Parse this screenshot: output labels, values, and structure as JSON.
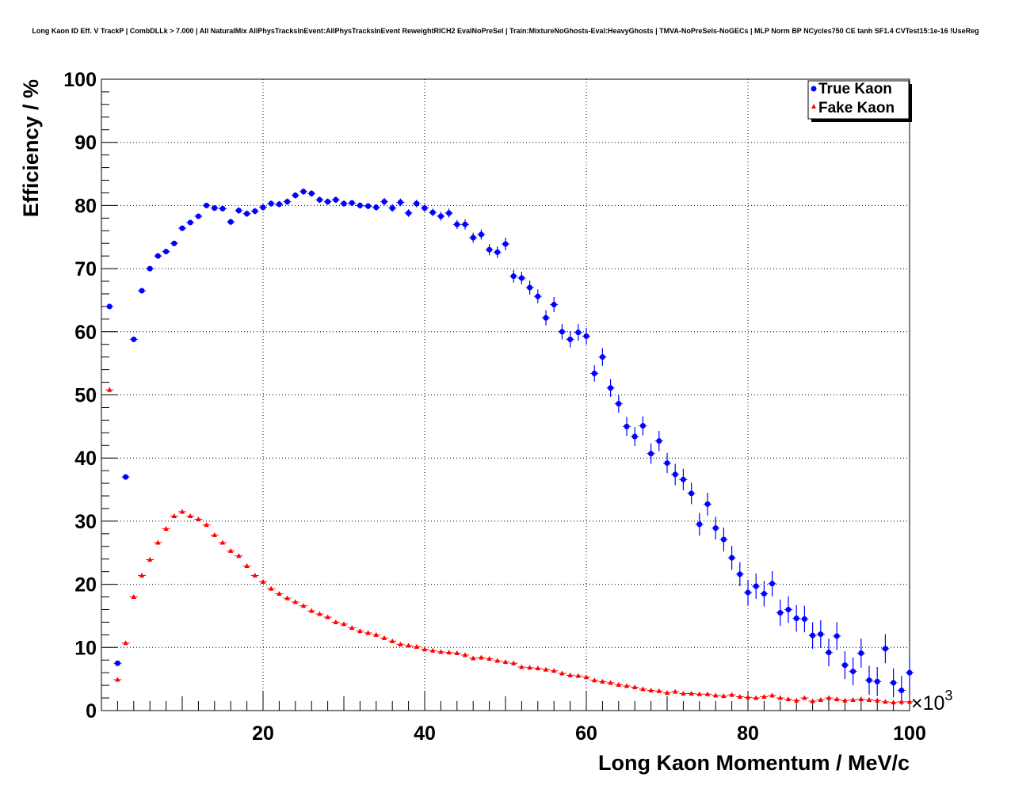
{
  "chart_data": {
    "type": "scatter",
    "title": "Long Kaon ID Eff. V TrackP | CombDLLk > 7.000 | All NaturalMix AllPhysTracksInEvent:AllPhysTracksInEvent ReweightRICH2 EvalNoPreSel | Train:MixtureNoGhosts-Eval:HeavyGhosts | TMVA-NoPreSels-NoGECs | MLP Norm BP NCycles750 CE tanh SF1.4 CVTest15:1e-16 !UseReg",
    "xlabel": "Long Kaon Momentum / MeV/c",
    "ylabel": "Efficiency / %",
    "x_exponent": "×10",
    "x_exponent_power": "3",
    "xlim": [
      0,
      100
    ],
    "ylim": [
      0,
      100
    ],
    "xticks": [
      20,
      40,
      60,
      80,
      100
    ],
    "yticks": [
      0,
      10,
      20,
      30,
      40,
      50,
      60,
      70,
      80,
      90,
      100
    ],
    "grid": true,
    "legend_position": "top-right",
    "x": [
      1,
      2,
      3,
      4,
      5,
      6,
      7,
      8,
      9,
      10,
      11,
      12,
      13,
      14,
      15,
      16,
      17,
      18,
      19,
      20,
      21,
      22,
      23,
      24,
      25,
      26,
      27,
      28,
      29,
      30,
      31,
      32,
      33,
      34,
      35,
      36,
      37,
      38,
      39,
      40,
      41,
      42,
      43,
      44,
      45,
      46,
      47,
      48,
      49,
      50,
      51,
      52,
      53,
      54,
      55,
      56,
      57,
      58,
      59,
      60,
      61,
      62,
      63,
      64,
      65,
      66,
      67,
      68,
      69,
      70,
      71,
      72,
      73,
      74,
      75,
      76,
      77,
      78,
      79,
      80,
      81,
      82,
      83,
      84,
      85,
      86,
      87,
      88,
      89,
      90,
      91,
      92,
      93,
      94,
      95,
      96,
      97,
      98,
      99,
      100
    ],
    "series": [
      {
        "name": "True Kaon",
        "color": "#0000ff",
        "marker": "circle",
        "values": [
          64.0,
          7.5,
          37.0,
          58.8,
          66.5,
          70.0,
          72.0,
          72.7,
          74.0,
          76.4,
          77.3,
          78.3,
          80.0,
          79.6,
          79.5,
          77.4,
          79.2,
          78.7,
          79.1,
          79.7,
          80.3,
          80.2,
          80.6,
          81.6,
          82.2,
          81.9,
          80.9,
          80.6,
          80.9,
          80.3,
          80.4,
          80.0,
          79.9,
          79.7,
          80.6,
          79.6,
          80.5,
          78.8,
          80.3,
          79.6,
          78.9,
          78.3,
          78.8,
          77.0,
          77.0,
          74.9,
          75.4,
          73.0,
          72.6,
          73.9,
          68.8,
          68.5,
          67.0,
          65.6,
          62.2,
          64.3,
          60.0,
          58.8,
          59.9,
          59.3,
          53.4,
          56.0,
          51.1,
          48.6,
          45.0,
          43.4,
          45.1,
          40.7,
          42.7,
          39.2,
          37.4,
          36.6,
          34.4,
          29.5,
          32.7,
          28.9,
          27.1,
          24.2,
          21.6,
          18.7,
          19.7,
          18.5,
          20.1,
          15.5,
          16.0,
          14.6,
          14.5,
          11.9,
          12.1,
          9.2,
          11.8,
          7.2,
          6.2,
          9.1,
          4.8,
          4.6,
          9.8,
          4.4,
          3.2,
          6.0
        ],
        "errors": [
          0.4,
          0.4,
          0.4,
          0.4,
          0.4,
          0.4,
          0.4,
          0.4,
          0.4,
          0.4,
          0.4,
          0.4,
          0.4,
          0.4,
          0.4,
          0.5,
          0.5,
          0.5,
          0.5,
          0.5,
          0.5,
          0.5,
          0.5,
          0.5,
          0.5,
          0.5,
          0.5,
          0.5,
          0.5,
          0.5,
          0.5,
          0.5,
          0.5,
          0.5,
          0.6,
          0.6,
          0.6,
          0.6,
          0.6,
          0.6,
          0.6,
          0.7,
          0.7,
          0.7,
          0.8,
          0.8,
          0.8,
          0.9,
          0.9,
          1.0,
          1.0,
          1.0,
          1.1,
          1.1,
          1.2,
          1.2,
          1.2,
          1.3,
          1.3,
          1.3,
          1.3,
          1.4,
          1.4,
          1.4,
          1.5,
          1.5,
          1.5,
          1.6,
          1.6,
          1.6,
          1.7,
          1.7,
          1.7,
          1.8,
          1.8,
          1.8,
          1.9,
          1.9,
          1.9,
          2.0,
          2.0,
          2.0,
          2.0,
          2.1,
          2.1,
          2.1,
          2.1,
          2.1,
          2.2,
          2.2,
          2.2,
          2.2,
          2.2,
          2.3,
          2.3,
          2.3,
          2.3,
          2.3,
          2.3,
          2.4
        ]
      },
      {
        "name": "Fake Kaon",
        "color": "#ff0000",
        "marker": "triangle",
        "values": [
          50.8,
          4.9,
          10.7,
          18.0,
          21.4,
          23.9,
          26.6,
          28.8,
          30.8,
          31.5,
          30.8,
          30.3,
          29.4,
          27.8,
          26.6,
          25.3,
          24.5,
          22.9,
          21.4,
          20.4,
          19.3,
          18.5,
          17.8,
          17.2,
          16.6,
          15.8,
          15.3,
          14.8,
          14.0,
          13.7,
          13.1,
          12.6,
          12.3,
          12.0,
          11.5,
          11.0,
          10.5,
          10.3,
          10.1,
          9.7,
          9.5,
          9.3,
          9.2,
          9.1,
          8.8,
          8.3,
          8.4,
          8.2,
          7.9,
          7.7,
          7.5,
          6.9,
          6.8,
          6.7,
          6.5,
          6.3,
          5.9,
          5.6,
          5.5,
          5.3,
          4.8,
          4.6,
          4.4,
          4.1,
          3.9,
          3.7,
          3.4,
          3.2,
          3.1,
          2.8,
          3.0,
          2.7,
          2.7,
          2.6,
          2.6,
          2.4,
          2.3,
          2.5,
          2.2,
          2.1,
          2.0,
          2.2,
          2.4,
          2.0,
          1.8,
          1.6,
          2.0,
          1.5,
          1.7,
          2.0,
          1.8,
          1.6,
          1.7,
          1.8,
          1.7,
          1.6,
          1.4,
          1.3,
          1.4,
          1.4
        ],
        "errors": [
          0.4,
          0.3,
          0.3,
          0.3,
          0.3,
          0.3,
          0.3,
          0.3,
          0.3,
          0.3,
          0.3,
          0.3,
          0.3,
          0.3,
          0.3,
          0.3,
          0.3,
          0.3,
          0.3,
          0.3,
          0.3,
          0.3,
          0.3,
          0.3,
          0.3,
          0.3,
          0.3,
          0.3,
          0.3,
          0.3,
          0.3,
          0.3,
          0.3,
          0.3,
          0.3,
          0.3,
          0.3,
          0.3,
          0.3,
          0.3,
          0.3,
          0.3,
          0.3,
          0.3,
          0.3,
          0.3,
          0.3,
          0.3,
          0.3,
          0.3,
          0.3,
          0.3,
          0.3,
          0.3,
          0.3,
          0.3,
          0.3,
          0.3,
          0.3,
          0.3,
          0.3,
          0.3,
          0.3,
          0.3,
          0.3,
          0.3,
          0.3,
          0.3,
          0.3,
          0.3,
          0.3,
          0.3,
          0.3,
          0.3,
          0.3,
          0.3,
          0.3,
          0.3,
          0.3,
          0.3,
          0.3,
          0.3,
          0.3,
          0.3,
          0.3,
          0.3,
          0.3,
          0.3,
          0.3,
          0.3,
          0.3,
          0.3,
          0.3,
          0.3,
          0.3,
          0.3,
          0.3,
          0.3,
          0.3,
          0.3
        ]
      }
    ]
  }
}
